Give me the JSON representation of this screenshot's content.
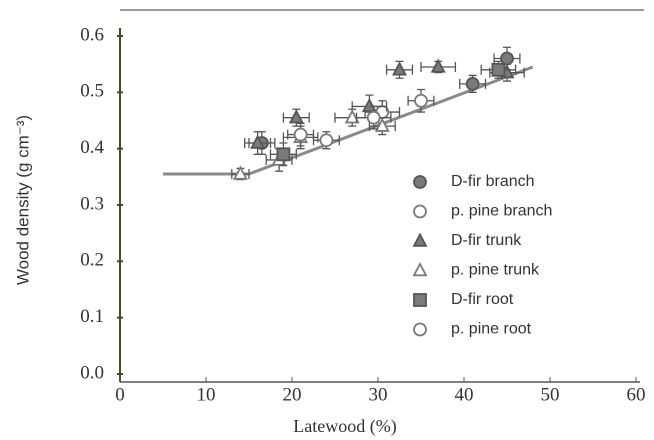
{
  "chart_data": {
    "type": "scatter",
    "x_label": "Latewood (%)",
    "y_label": "Wood density (g cm⁻³)",
    "xlim": [
      0,
      60
    ],
    "ylim": [
      0,
      0.6
    ],
    "xticks": [
      0,
      10,
      20,
      30,
      40,
      50,
      60
    ],
    "yticks": [
      {
        "value": 0,
        "label": "0.0"
      },
      0.1,
      0.2,
      0.3,
      0.4,
      0.5,
      0.6
    ],
    "series": [
      {
        "name": "D-fir branch",
        "marker": "circle",
        "filled": true,
        "color": "#7a7a7a",
        "x": [
          16.5,
          41,
          45
        ],
        "values": [
          0.41,
          0.515,
          0.56
        ],
        "xerr": [
          1.5,
          1.5,
          1.5
        ],
        "yerr": [
          0.02,
          0.015,
          0.02
        ]
      },
      {
        "name": "p. pine branch",
        "marker": "circle",
        "filled": false,
        "color": "#7a7a7a",
        "x": [
          24,
          30.5,
          35
        ],
        "values": [
          0.415,
          0.465,
          0.485
        ],
        "xerr": [
          1.5,
          2,
          1.5
        ],
        "yerr": [
          0.015,
          0.02,
          0.02
        ]
      },
      {
        "name": "D-fir trunk",
        "marker": "triangle",
        "filled": true,
        "color": "#7a7a7a",
        "x": [
          16,
          20.5,
          29,
          32.5,
          37,
          45
        ],
        "values": [
          0.41,
          0.455,
          0.475,
          0.54,
          0.545,
          0.535
        ],
        "xerr": [
          1.5,
          1.5,
          2,
          1.5,
          2,
          2
        ],
        "yerr": [
          0.02,
          0.015,
          0.02,
          0.015,
          0.01,
          0.015
        ]
      },
      {
        "name": "p. pine trunk",
        "marker": "triangle",
        "filled": false,
        "color": "#7a7a7a",
        "x": [
          14,
          18.5,
          21,
          27,
          30.5
        ],
        "values": [
          0.355,
          0.38,
          0.42,
          0.455,
          0.44
        ],
        "xerr": [
          1,
          1.5,
          2,
          2,
          1.5
        ],
        "yerr": [
          0.01,
          0.02,
          0.02,
          0.015,
          0.015
        ]
      },
      {
        "name": "D-fir root",
        "marker": "square",
        "filled": true,
        "color": "#7a7a7a",
        "x": [
          19,
          44
        ],
        "values": [
          0.39,
          0.54
        ],
        "xerr": [
          1.5,
          2
        ],
        "yerr": [
          0.02,
          0.015
        ]
      },
      {
        "name": "p. pine root",
        "marker": "circle",
        "filled": false,
        "color": "#7a7a7a",
        "x": [
          21,
          29.5
        ],
        "values": [
          0.425,
          0.455
        ],
        "xerr": [
          1.5,
          2
        ],
        "yerr": [
          0.02,
          0.02
        ]
      }
    ],
    "trend_line": {
      "color": "#8a8a8a",
      "x": [
        5,
        15,
        48
      ],
      "values": [
        0.355,
        0.355,
        0.545
      ]
    }
  }
}
